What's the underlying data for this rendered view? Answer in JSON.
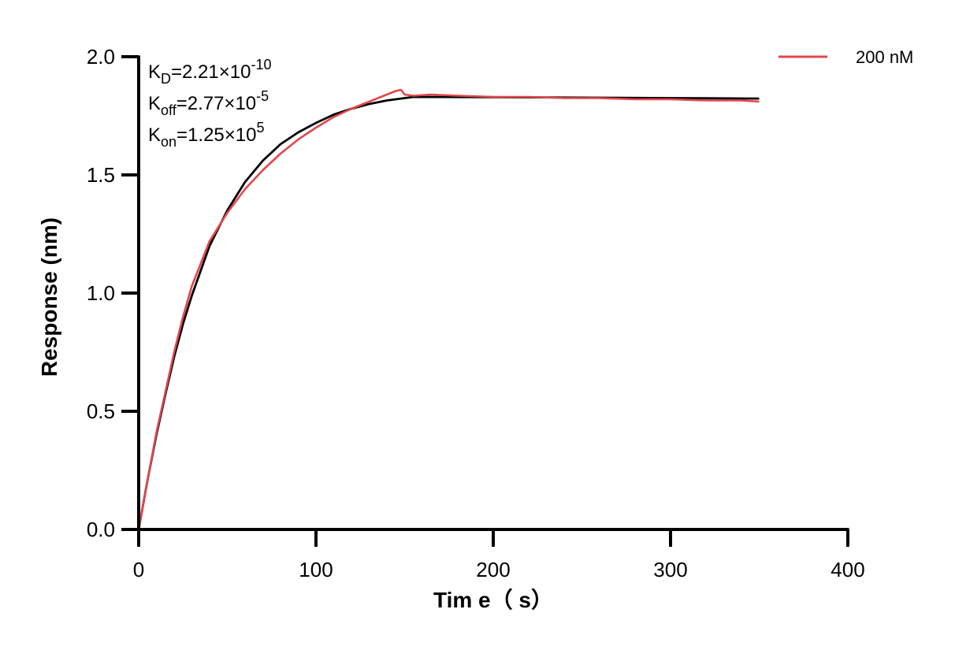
{
  "chart_data": {
    "type": "line",
    "xlabel": "Tim e（ s）",
    "ylabel": "Response (nm)",
    "xlim": [
      0,
      400
    ],
    "ylim": [
      0,
      2.0
    ],
    "x_ticks": [
      "0",
      "100",
      "200",
      "300",
      "400"
    ],
    "x_tick_values": [
      0,
      100,
      200,
      300,
      400
    ],
    "y_ticks": [
      "0.0",
      "0.5",
      "1.0",
      "1.5",
      "2.0"
    ],
    "y_tick_values": [
      0,
      0.5,
      1.0,
      1.5,
      2.0
    ],
    "grid": false,
    "legend_position": "top-right",
    "annotations": [
      {
        "base": "K",
        "sub": "D",
        "mid": "=2.21×10",
        "sup": "-10"
      },
      {
        "base": "K",
        "sub": "off",
        "mid": "=2.77×10",
        "sup": "-5"
      },
      {
        "base": "K",
        "sub": "on",
        "mid": "=1.25×10",
        "sup": "5"
      }
    ],
    "series": [
      {
        "name": "200 nM",
        "color": "#e0474c",
        "x": [
          0,
          5,
          10,
          15,
          20,
          25,
          30,
          40,
          50,
          60,
          70,
          80,
          90,
          100,
          110,
          120,
          130,
          140,
          145,
          148,
          150,
          155,
          165,
          180,
          200,
          220,
          240,
          260,
          280,
          300,
          320,
          340,
          350
        ],
        "y": [
          0.0,
          0.21,
          0.41,
          0.58,
          0.75,
          0.9,
          1.03,
          1.22,
          1.34,
          1.44,
          1.52,
          1.59,
          1.65,
          1.7,
          1.745,
          1.78,
          1.81,
          1.84,
          1.855,
          1.86,
          1.84,
          1.835,
          1.84,
          1.835,
          1.83,
          1.83,
          1.825,
          1.825,
          1.82,
          1.82,
          1.815,
          1.815,
          1.81
        ]
      },
      {
        "color": "#000000",
        "x": [
          0,
          5,
          10,
          15,
          20,
          25,
          30,
          40,
          50,
          60,
          70,
          80,
          90,
          100,
          110,
          120,
          130,
          140,
          150,
          155,
          200,
          250,
          300,
          350
        ],
        "y": [
          0.0,
          0.21,
          0.4,
          0.57,
          0.73,
          0.87,
          0.99,
          1.2,
          1.35,
          1.47,
          1.56,
          1.63,
          1.68,
          1.72,
          1.755,
          1.78,
          1.8,
          1.815,
          1.825,
          1.83,
          1.829,
          1.827,
          1.825,
          1.823
        ]
      }
    ]
  }
}
